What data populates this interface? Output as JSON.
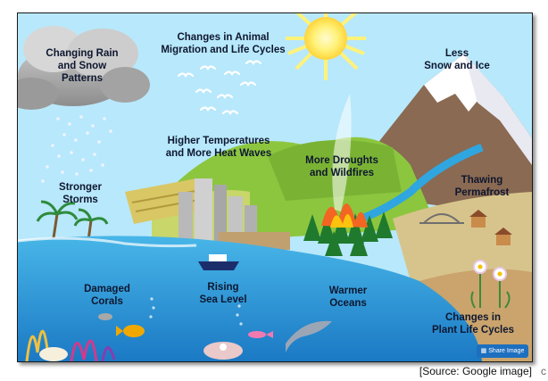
{
  "labels": {
    "rain_snow": "Changing Rain\nand Snow\nPatterns",
    "migration": "Changes in Animal\nMigration and Life Cycles",
    "snow_ice": "Less\nSnow and Ice",
    "temperatures": "Higher Temperatures\nand More Heat Waves",
    "droughts": "More Droughts\nand Wildfires",
    "storms": "Stronger\nStorms",
    "permafrost": "Thawing\nPermafrost",
    "corals": "Damaged\nCorals",
    "sea_level": "Rising\nSea Level",
    "oceans": "Warmer\nOceans",
    "plant_cycles": "Changes in\nPlant Life Cycles"
  },
  "share_button": {
    "label": "Share Image",
    "icon": "share-icon"
  },
  "caption": "[Source: Google image]",
  "edge_glyph": "c",
  "colors": {
    "sky": "#b8e8fb",
    "ocean": "#2fa6df",
    "deep_ocean": "#1b79c4",
    "land": "#8cc63f",
    "mountain": "#8a6a52",
    "sun": "#fff27a",
    "label_text": "#0e1730"
  }
}
